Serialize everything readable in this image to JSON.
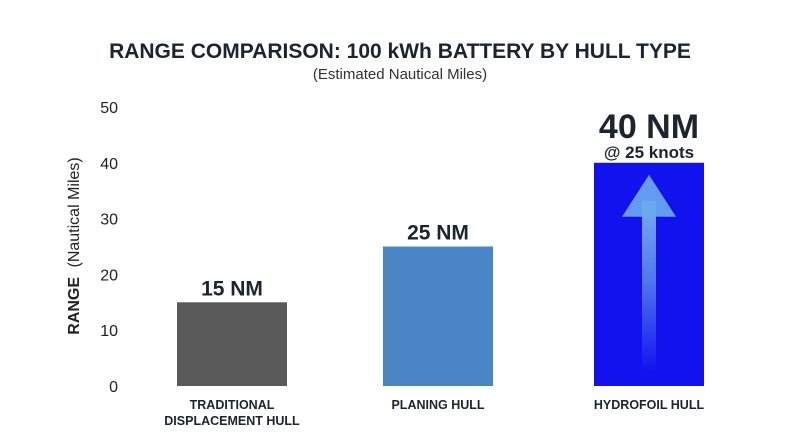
{
  "chart_data": {
    "type": "bar",
    "title": "RANGE COMPARISON: 100 kWh BATTERY BY HULL TYPE",
    "subtitle": "(Estimated Nautical Miles)",
    "ylabel_main": "RANGE",
    "ylabel_sub": "(Nautical Miles)",
    "xlabel": "",
    "ylim": [
      0,
      50
    ],
    "yticks": [
      0,
      10,
      20,
      30,
      40,
      50
    ],
    "grid": false,
    "legend": "none",
    "categories": [
      [
        "TRADITIONAL",
        "DISPLACEMENT HULL"
      ],
      [
        "PLANING HULL"
      ],
      [
        "HYDROFOIL HULL"
      ]
    ],
    "values": [
      15,
      25,
      40
    ],
    "data_labels": [
      "15 NM",
      "25 NM",
      "40 NM"
    ],
    "annotation": "@ 25 knots",
    "colors": [
      "#595959",
      "#4a86c6",
      "#1212ee"
    ],
    "arrow_color": "#6aa8ee"
  }
}
